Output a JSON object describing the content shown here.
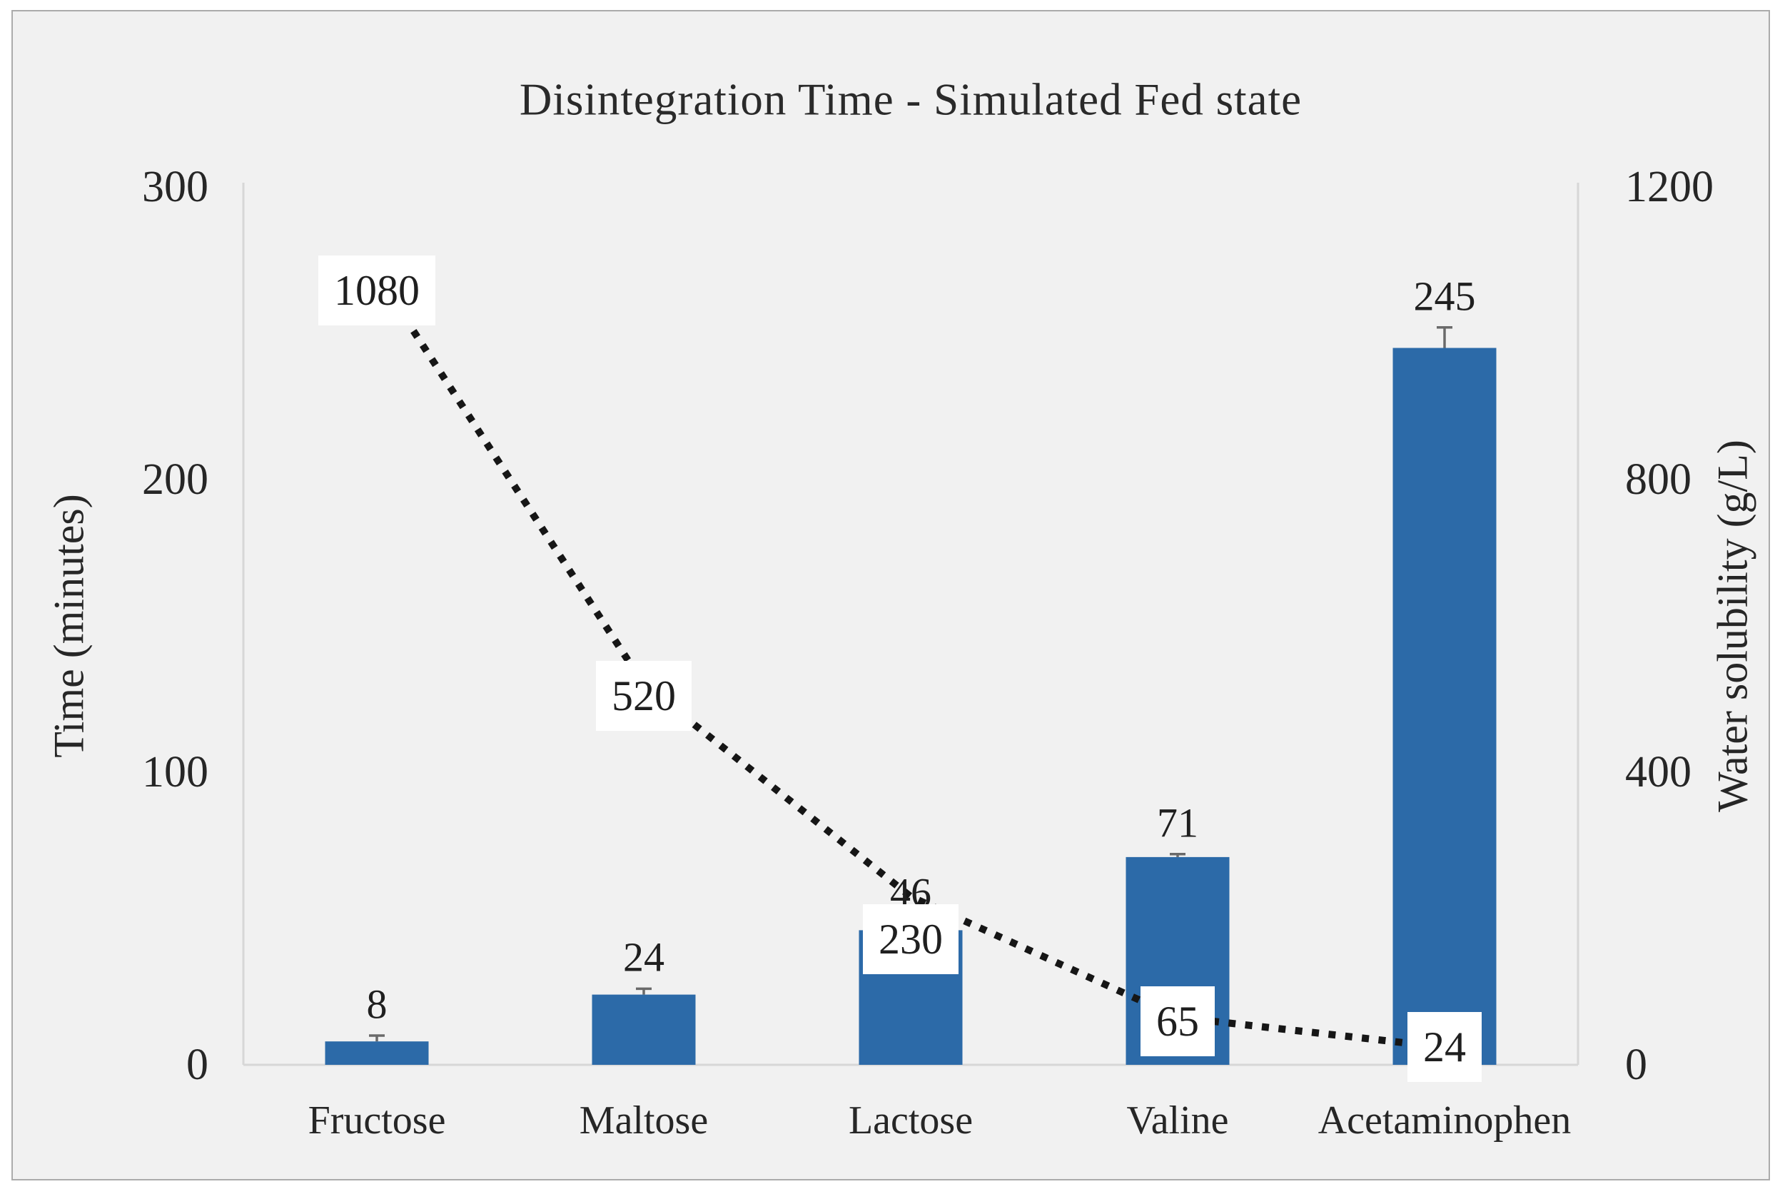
{
  "figure": {
    "title": "Disintegration Time - Simulated Fed state"
  },
  "chart_data": {
    "type": "combo",
    "title": "Disintegration Time - Simulated Fed state",
    "categories": [
      "Fructose",
      "Maltose",
      "Lactose",
      "Valine",
      "Acetaminophen"
    ],
    "series": [
      {
        "name": "Disintegration time (bars)",
        "type": "bar",
        "axis": "left",
        "values": [
          8,
          24,
          46,
          71,
          245
        ],
        "data_labels": [
          "8",
          "24",
          "46",
          "71",
          "245"
        ],
        "error_bars": [
          2,
          2,
          2,
          1,
          7
        ]
      },
      {
        "name": "Water solubility (dotted line)",
        "type": "line",
        "line_style": "dotted",
        "axis": "right",
        "values": [
          1080,
          520,
          230,
          65,
          24
        ],
        "data_labels": [
          "1080",
          "520",
          "230",
          "65",
          "24"
        ],
        "label_box": true,
        "label_y_offsets": [
          22,
          16,
          60,
          6,
          0
        ]
      }
    ],
    "left_axis": {
      "label": "Time (minutes)",
      "min": 0,
      "max": 300,
      "ticks": [
        0,
        100,
        200,
        300
      ]
    },
    "right_axis": {
      "label": "Water solubility (g/L)",
      "min": 0,
      "max": 1200,
      "ticks": [
        0,
        400,
        800,
        1200
      ]
    },
    "grid": false,
    "legend": false
  },
  "colors": {
    "background": "#f1f1f1",
    "frame_border": "#ababab",
    "axis_line": "#d7d7d7",
    "bar": "#2c6aa8",
    "error_bar": "#6a6a6a",
    "dotted_line": "#161616",
    "text": "#262626",
    "label_box_bg": "#ffffff"
  }
}
